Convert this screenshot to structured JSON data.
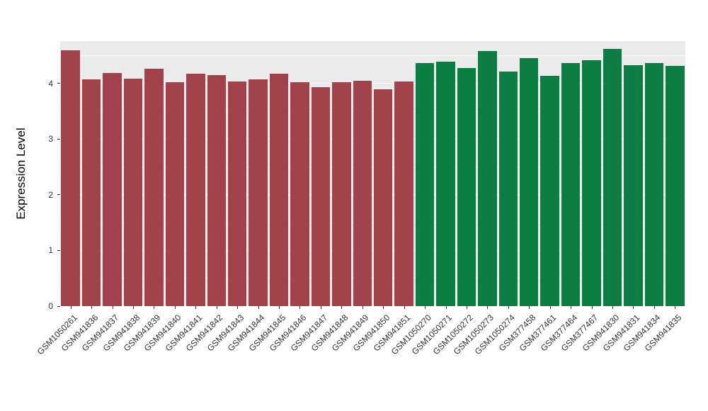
{
  "chart_data": {
    "type": "bar",
    "title": "",
    "xlabel": "",
    "ylabel": "Expression Level",
    "ylim": [
      0,
      4.76
    ],
    "yticks": [
      0,
      1,
      2,
      3,
      4
    ],
    "minor_ticks": [
      0.5,
      1.5,
      2.5,
      3.5,
      4.5
    ],
    "grid": "on",
    "legend": "none",
    "panel_background": "#EBEBEB",
    "grid_color": "#FFFFFF",
    "categories": [
      "GSM1050261",
      "GSM941836",
      "GSM941837",
      "GSM941838",
      "GSM941839",
      "GSM941840",
      "GSM941841",
      "GSM941842",
      "GSM941843",
      "GSM941844",
      "GSM941845",
      "GSM941846",
      "GSM941847",
      "GSM941848",
      "GSM941849",
      "GSM941850",
      "GSM941851",
      "GSM1050270",
      "GSM1050271",
      "GSM1050272",
      "GSM1050273",
      "GSM1050274",
      "GSM377458",
      "GSM377461",
      "GSM377464",
      "GSM377467",
      "GSM941830",
      "GSM941831",
      "GSM941834",
      "GSM941835"
    ],
    "values": [
      4.6,
      4.07,
      4.19,
      4.08,
      4.26,
      4.02,
      4.17,
      4.15,
      4.03,
      4.07,
      4.18,
      4.02,
      3.93,
      4.02,
      4.05,
      3.9,
      4.04,
      4.37,
      4.39,
      4.28,
      4.58,
      4.21,
      4.45,
      4.14,
      4.37,
      4.42,
      4.62,
      4.33,
      4.36,
      4.32
    ],
    "groups": [
      "maroon",
      "maroon",
      "maroon",
      "maroon",
      "maroon",
      "maroon",
      "maroon",
      "maroon",
      "maroon",
      "maroon",
      "maroon",
      "maroon",
      "maroon",
      "maroon",
      "maroon",
      "maroon",
      "maroon",
      "green",
      "green",
      "green",
      "green",
      "green",
      "green",
      "green",
      "green",
      "green",
      "green",
      "green",
      "green",
      "green"
    ],
    "group_colors": {
      "maroon": "#A0434D",
      "green": "#0E7C45"
    }
  }
}
